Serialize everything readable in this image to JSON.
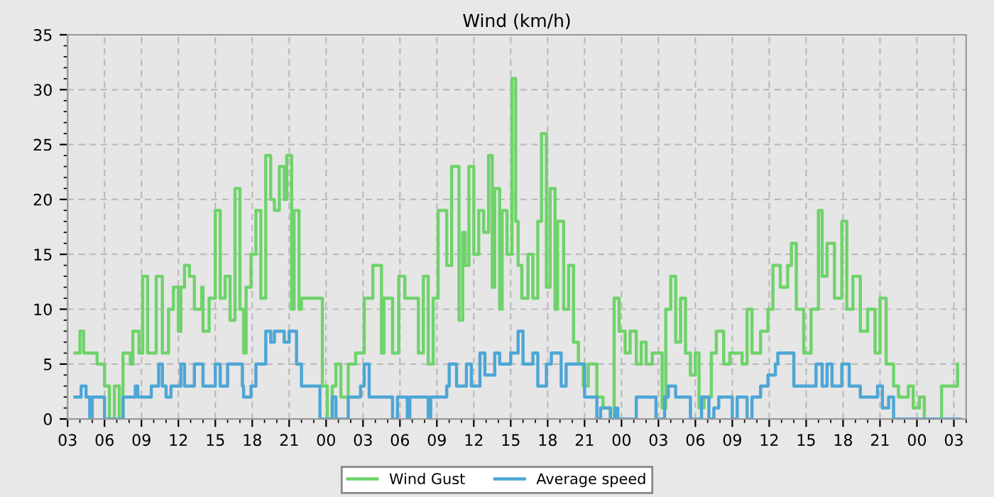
{
  "chart_data": {
    "type": "step",
    "title": "Wind (km/h)",
    "legend": "bottom",
    "grid": true,
    "line_style": "solid",
    "marker": "none",
    "xlim": [
      3,
      76
    ],
    "ylim": [
      0,
      35
    ],
    "yticks": [
      0,
      5,
      10,
      15,
      20,
      25,
      30,
      35
    ],
    "xticks": [
      {
        "value": 3,
        "label": "03"
      },
      {
        "value": 6,
        "label": "06"
      },
      {
        "value": 9,
        "label": "09"
      },
      {
        "value": 12,
        "label": "12"
      },
      {
        "value": 15,
        "label": "15"
      },
      {
        "value": 18,
        "label": "18"
      },
      {
        "value": 21,
        "label": "21"
      },
      {
        "value": 24,
        "label": "00"
      },
      {
        "value": 27,
        "label": "03"
      },
      {
        "value": 30,
        "label": "06"
      },
      {
        "value": 33,
        "label": "09"
      },
      {
        "value": 36,
        "label": "12"
      },
      {
        "value": 39,
        "label": "15"
      },
      {
        "value": 42,
        "label": "18"
      },
      {
        "value": 45,
        "label": "21"
      },
      {
        "value": 48,
        "label": "00"
      },
      {
        "value": 51,
        "label": "03"
      },
      {
        "value": 54,
        "label": "06"
      },
      {
        "value": 57,
        "label": "09"
      },
      {
        "value": 60,
        "label": "12"
      },
      {
        "value": 63,
        "label": "15"
      },
      {
        "value": 66,
        "label": "18"
      },
      {
        "value": 69,
        "label": "21"
      },
      {
        "value": 72,
        "label": "00"
      },
      {
        "value": 75,
        "label": "03"
      }
    ],
    "series": [
      {
        "name": "Wind Gust",
        "color": "#6fd36b",
        "x": [
          3.6,
          4,
          4.3,
          5.4,
          6,
          6.4,
          6.8,
          7.2,
          7.5,
          8.1,
          8.3,
          8.8,
          9.1,
          9.5,
          10.2,
          10.7,
          11.2,
          11.6,
          12,
          12.2,
          12.5,
          12.9,
          13.3,
          13.9,
          14,
          14.5,
          15,
          15.4,
          15.8,
          16.2,
          16.6,
          17,
          17.3,
          17.5,
          17.9,
          18.3,
          18.7,
          19.1,
          19.5,
          19.8,
          20.2,
          20.6,
          20.8,
          21.2,
          21.4,
          21.8,
          22,
          23.5,
          23.7,
          24.1,
          24.5,
          24.8,
          25.2,
          25.8,
          26.4,
          27.1,
          27.8,
          28.5,
          28.7,
          29.4,
          29.9,
          30.4,
          31,
          31.5,
          31.9,
          32.3,
          32.7,
          33.1,
          33.8,
          34.2,
          34.8,
          35.1,
          35.3,
          35.6,
          36,
          36.4,
          36.8,
          37.2,
          37.5,
          37.7,
          38.1,
          38.3,
          38.7,
          39.1,
          39.4,
          39.6,
          39.9,
          40.4,
          40.8,
          41.2,
          41.5,
          41.9,
          42.2,
          42.6,
          42.8,
          43.3,
          43.7,
          44.1,
          44.5,
          44.9,
          45.3,
          45.7,
          46,
          46.5,
          47.1,
          47.4,
          47.8,
          48.3,
          48.7,
          49.2,
          49.6,
          50,
          50.5,
          51.3,
          51.6,
          52,
          52.4,
          52.8,
          53.2,
          53.6,
          54,
          54.3,
          54.7,
          55.3,
          55.7,
          56.3,
          56.8,
          57.2,
          57.8,
          58.2,
          58.6,
          59.3,
          59.9,
          60.3,
          60.9,
          61.5,
          61.8,
          62.2,
          62.8,
          63.4,
          64,
          64.3,
          64.7,
          65.3,
          65.9,
          66.3,
          66.8,
          67.4,
          68,
          68.6,
          69,
          69.5,
          70.1,
          70.5,
          71.3,
          71.7,
          72.2,
          72.6,
          74,
          74.7,
          75.3
        ],
        "values": [
          6,
          8,
          6,
          5,
          3,
          0,
          3,
          0,
          6,
          5,
          8,
          6,
          13,
          6,
          13,
          6,
          10,
          12,
          8,
          12,
          14,
          13,
          10,
          12,
          8,
          11,
          19,
          11,
          13,
          9,
          21,
          10,
          6,
          12,
          15,
          19,
          11,
          24,
          20,
          19,
          23,
          20,
          24,
          10,
          19,
          10,
          11,
          11,
          3,
          0,
          3,
          5,
          2,
          5,
          6,
          11,
          14,
          6,
          11,
          6,
          13,
          11,
          11,
          6,
          13,
          5,
          11,
          19,
          14,
          23,
          9,
          17,
          14,
          23,
          15,
          19,
          17,
          24,
          12,
          21,
          10,
          19,
          15,
          31,
          18,
          14,
          11,
          15,
          11,
          18,
          26,
          12,
          21,
          10,
          18,
          10,
          14,
          7,
          5,
          3,
          5,
          5,
          2,
          1,
          0,
          11,
          8,
          6,
          8,
          5,
          7,
          5,
          6,
          1,
          10,
          13,
          7,
          11,
          6,
          4,
          6,
          1,
          2,
          6,
          8,
          5,
          6,
          6,
          5,
          10,
          6,
          8,
          10,
          14,
          12,
          14,
          16,
          10,
          6,
          10,
          19,
          13,
          16,
          11,
          18,
          10,
          13,
          8,
          10,
          6,
          11,
          5,
          3,
          2,
          3,
          1,
          2,
          0,
          3,
          3,
          5
        ]
      },
      {
        "name": "Average speed",
        "color": "#4da6d6",
        "x": [
          3.6,
          4.1,
          4.5,
          4.8,
          5,
          5.8,
          6,
          7.3,
          7.5,
          8.5,
          8.7,
          9.8,
          10.4,
          10.7,
          11,
          11.4,
          12.2,
          12.5,
          13.3,
          14,
          15,
          15.4,
          16,
          16.8,
          17.2,
          17.3,
          17.9,
          18.3,
          19.1,
          19.5,
          19.8,
          20.6,
          21,
          21.6,
          22,
          23.3,
          23.5,
          24.5,
          24.8,
          25.6,
          25.8,
          26.8,
          27.1,
          27.5,
          29.4,
          29.8,
          30.6,
          30.8,
          32.3,
          32.5,
          33.8,
          34,
          34.6,
          35.4,
          35.8,
          36.5,
          36.9,
          37.7,
          38.1,
          39,
          39.6,
          40,
          40.8,
          41.2,
          41.9,
          42.3,
          43.1,
          43.5,
          45,
          46,
          46.3,
          47.1,
          47.5,
          47.7,
          49.2,
          50.6,
          50.8,
          51.5,
          51.8,
          52.4,
          53.2,
          53.6,
          54.5,
          55.1,
          55.5,
          55.9,
          57,
          57.4,
          58.2,
          58.6,
          59.3,
          59.9,
          60.5,
          60.7,
          62,
          63.8,
          64.3,
          64.7,
          65.1,
          65.9,
          66.5,
          67.4,
          68.8,
          69.2,
          69.7,
          70.1,
          75.5
        ],
        "values": [
          2,
          3,
          2,
          0,
          2,
          2,
          0,
          0,
          2,
          3,
          2,
          3,
          5,
          3,
          2,
          3,
          5,
          3,
          5,
          3,
          5,
          3,
          5,
          5,
          3,
          2,
          3,
          5,
          8,
          7,
          8,
          7,
          8,
          5,
          3,
          3,
          0,
          2,
          0,
          0,
          2,
          3,
          5,
          2,
          0,
          2,
          0,
          2,
          0,
          2,
          3,
          5,
          3,
          5,
          3,
          6,
          4,
          6,
          5,
          6,
          8,
          5,
          6,
          3,
          5,
          6,
          3,
          5,
          2,
          0,
          1,
          0,
          1,
          0,
          2,
          2,
          0,
          2,
          3,
          2,
          2,
          0,
          2,
          0,
          1,
          2,
          0,
          2,
          0,
          2,
          3,
          4,
          5,
          6,
          3,
          5,
          3,
          5,
          3,
          5,
          3,
          2,
          3,
          1,
          2,
          0,
          0
        ]
      }
    ]
  }
}
